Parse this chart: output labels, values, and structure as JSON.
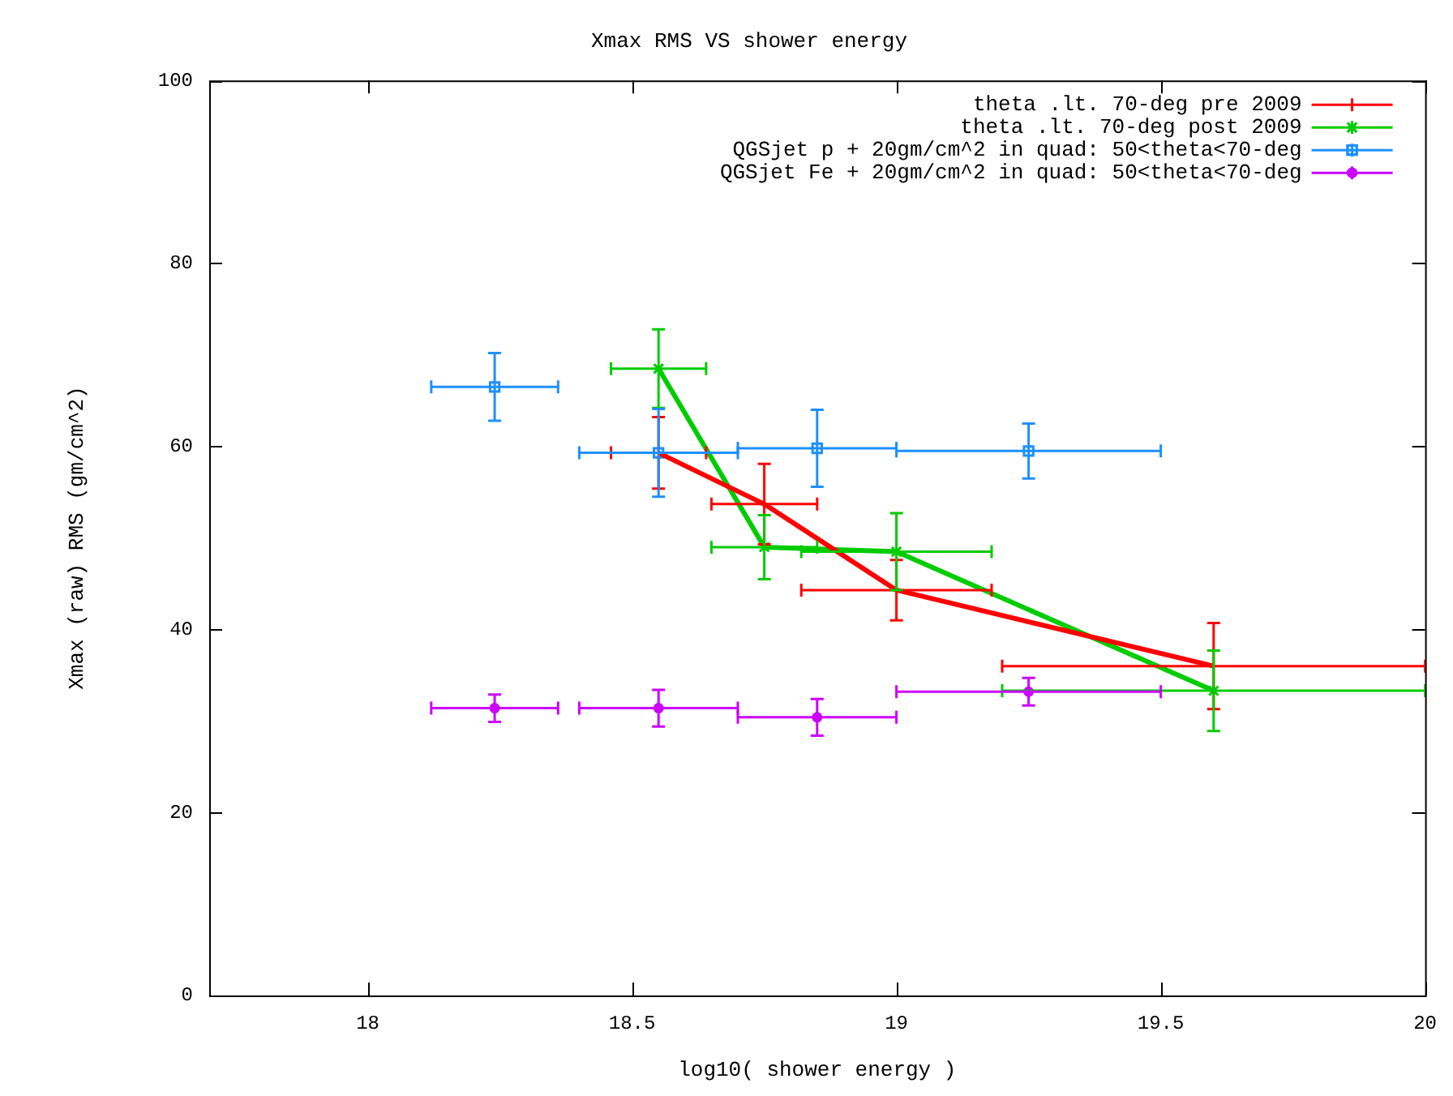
{
  "chart_data": {
    "type": "scatter",
    "title": "Xmax RMS VS shower energy",
    "xlabel": "log10( shower energy )",
    "ylabel": "Xmax (raw) RMS (gm/cm^2)",
    "xlim": [
      17.7,
      20
    ],
    "xticks": [
      18,
      18.5,
      19,
      19.5,
      20
    ],
    "ylim": [
      0,
      100
    ],
    "yticks": [
      0,
      20,
      40,
      60,
      80,
      100
    ],
    "grid": false,
    "legend": "top right",
    "series": [
      {
        "name": "theta .lt. 70-deg pre 2009",
        "type": "line",
        "marker": "none",
        "color": "#ff0000",
        "x": [
          18.55,
          18.75,
          19.0,
          19.6
        ],
        "values": [
          59.3,
          53.7,
          44.3,
          36.0
        ],
        "errors": [
          3.9,
          4.4,
          3.3,
          4.7
        ],
        "xerrors": [
          0.09,
          0.1,
          0.18,
          0.4
        ]
      },
      {
        "name": "theta .lt. 70-deg post 2009",
        "type": "line",
        "marker": "cross",
        "color": "#00cc00",
        "x": [
          18.55,
          18.75,
          19.0,
          19.6
        ],
        "values": [
          68.5,
          49.0,
          48.5,
          33.3
        ],
        "errors": [
          4.3,
          3.5,
          4.2,
          4.4
        ],
        "xerrors": [
          0.09,
          0.1,
          0.18,
          0.4
        ]
      },
      {
        "name": "QGSjet p + 20gm/cm^2 in quad: 50<theta<70-deg",
        "type": "scatter",
        "marker": "square",
        "color": "#1e90ff",
        "x": [
          18.24,
          18.55,
          18.85,
          19.25
        ],
        "values": [
          66.5,
          59.3,
          59.8,
          59.5
        ],
        "errors": [
          3.7,
          4.8,
          4.2,
          3.0
        ],
        "xerrors": [
          0.12,
          0.15,
          0.15,
          0.25
        ]
      },
      {
        "name": "QGSjet Fe + 20gm/cm^2 in quad: 50<theta<70-deg",
        "type": "scatter",
        "marker": "circle",
        "color": "#cc00ff",
        "x": [
          18.24,
          18.55,
          18.85,
          19.25
        ],
        "values": [
          31.4,
          31.4,
          30.4,
          33.2
        ],
        "errors": [
          1.5,
          2.0,
          2.0,
          1.5
        ],
        "xerrors": [
          0.12,
          0.15,
          0.15,
          0.25
        ]
      }
    ]
  }
}
